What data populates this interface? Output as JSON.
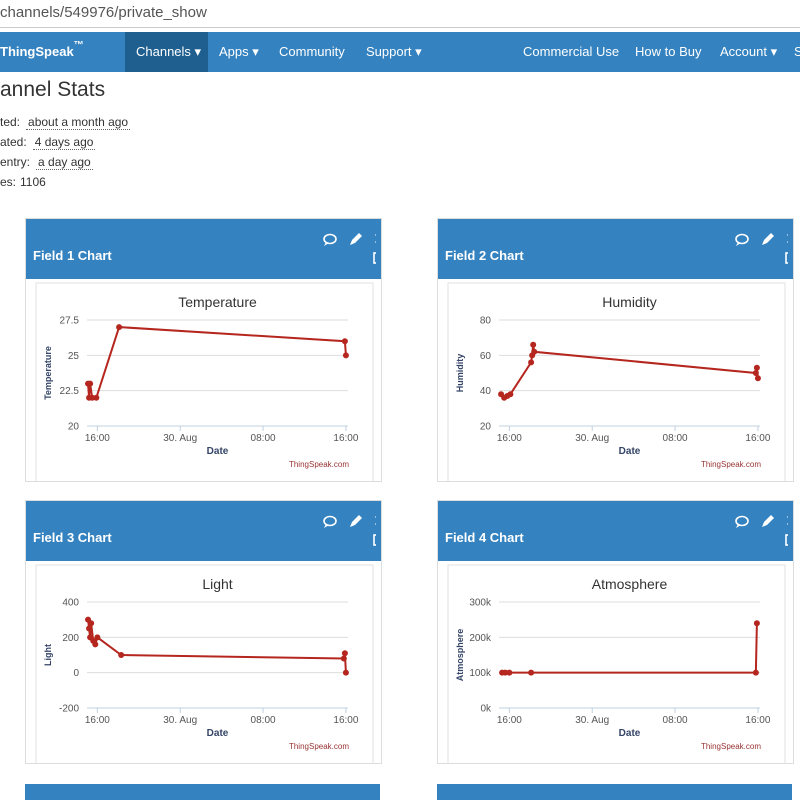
{
  "url": "channels/549976/private_show",
  "nav": {
    "logo": "ThingSpeak",
    "trademark": "™",
    "items": [
      "Channels ▾",
      "Apps ▾",
      "Community",
      "Support ▾"
    ],
    "right_items": [
      "Commercial Use",
      "How to Buy",
      "Account ▾",
      "S"
    ]
  },
  "stats": {
    "title": "annel Stats",
    "rows": [
      {
        "label": "ted:",
        "value": "about a month ago"
      },
      {
        "label": "ated:",
        "value": "4 days ago"
      },
      {
        "label": "entry:",
        "value": "a day ago"
      },
      {
        "label": "es:",
        "value": "1106"
      }
    ]
  },
  "panels": [
    {
      "title": "Field 1 Chart",
      "chart_data": {
        "type": "line",
        "title": "Temperature",
        "x_label": "Date",
        "y_label": "Temperature",
        "credit": "ThingSpeak.com",
        "xlim": [
          15,
          40.2
        ],
        "xticks": [
          {
            "value": 16,
            "label": "16:00"
          },
          {
            "value": 24,
            "label": "30. Aug"
          },
          {
            "value": 32,
            "label": "08:00"
          },
          {
            "value": 40,
            "label": "16:00"
          }
        ],
        "ylim": [
          20,
          27.5
        ],
        "yticks": [
          20,
          22.5,
          25,
          27.5
        ],
        "grid": true,
        "series": [
          {
            "name": "Temperature",
            "color": "#b5261e",
            "x": [
              15.1,
              15.2,
              15.3,
              15.5,
              15.9,
              18.1,
              39.9,
              40
            ],
            "values": [
              23,
              22,
              23,
              22,
              22,
              27,
              26,
              25
            ]
          }
        ]
      }
    },
    {
      "title": "Field 2 Chart",
      "chart_data": {
        "type": "line",
        "title": "Humidity",
        "x_label": "Date",
        "y_label": "Humidity",
        "credit": "ThingSpeak.com",
        "xlim": [
          15,
          40.2
        ],
        "xticks": [
          {
            "value": 16,
            "label": "16:00"
          },
          {
            "value": 24,
            "label": "30. Aug"
          },
          {
            "value": 32,
            "label": "08:00"
          },
          {
            "value": 40,
            "label": "16:00"
          }
        ],
        "ylim": [
          20,
          80
        ],
        "yticks": [
          20,
          40,
          60,
          80
        ],
        "grid": true,
        "series": [
          {
            "name": "Humidity",
            "color": "#b5261e",
            "x": [
              15.2,
              15.5,
              15.8,
              16.1,
              18.1,
              18.2,
              18.3,
              18.4,
              39.8,
              39.9,
              40
            ],
            "values": [
              38,
              36,
              37,
              38,
              56,
              60,
              66,
              62,
              50,
              53,
              47
            ]
          }
        ]
      }
    },
    {
      "title": "Field 3 Chart",
      "chart_data": {
        "type": "line",
        "title": "Light",
        "x_label": "Date",
        "y_label": "Light",
        "credit": "ThingSpeak.com",
        "xlim": [
          15,
          40.2
        ],
        "xticks": [
          {
            "value": 16,
            "label": "16:00"
          },
          {
            "value": 24,
            "label": "30. Aug"
          },
          {
            "value": 32,
            "label": "08:00"
          },
          {
            "value": 40,
            "label": "16:00"
          }
        ],
        "ylim": [
          -200,
          400
        ],
        "yticks": [
          -200,
          0,
          200,
          400
        ],
        "grid": true,
        "series": [
          {
            "name": "Light",
            "color": "#b5261e",
            "x": [
              15.1,
              15.2,
              15.3,
              15.4,
              15.6,
              15.8,
              16,
              18.3,
              39.8,
              39.9,
              40
            ],
            "values": [
              300,
              250,
              200,
              280,
              180,
              160,
              200,
              100,
              80,
              110,
              0
            ]
          }
        ]
      }
    },
    {
      "title": "Field 4 Chart",
      "chart_data": {
        "type": "line",
        "title": "Atmosphere",
        "x_label": "Date",
        "y_label": "Atmosphere",
        "credit": "ThingSpeak.com",
        "xlim": [
          15,
          40.2
        ],
        "xticks": [
          {
            "value": 16,
            "label": "16:00"
          },
          {
            "value": 24,
            "label": "30. Aug"
          },
          {
            "value": 32,
            "label": "08:00"
          },
          {
            "value": 40,
            "label": "16:00"
          }
        ],
        "ylim": [
          0,
          300000
        ],
        "yticks": [
          {
            "value": 0,
            "label": "0k"
          },
          {
            "value": 100000,
            "label": "100k"
          },
          {
            "value": 200000,
            "label": "200k"
          },
          {
            "value": 300000,
            "label": "300k"
          }
        ],
        "grid": true,
        "series": [
          {
            "name": "Atmosphere",
            "color": "#b5261e",
            "x": [
              15.3,
              15.6,
              16,
              18.1,
              39.8,
              39.9
            ],
            "values": [
              100000,
              100000,
              100000,
              100000,
              100000,
              240000
            ]
          }
        ]
      }
    }
  ]
}
